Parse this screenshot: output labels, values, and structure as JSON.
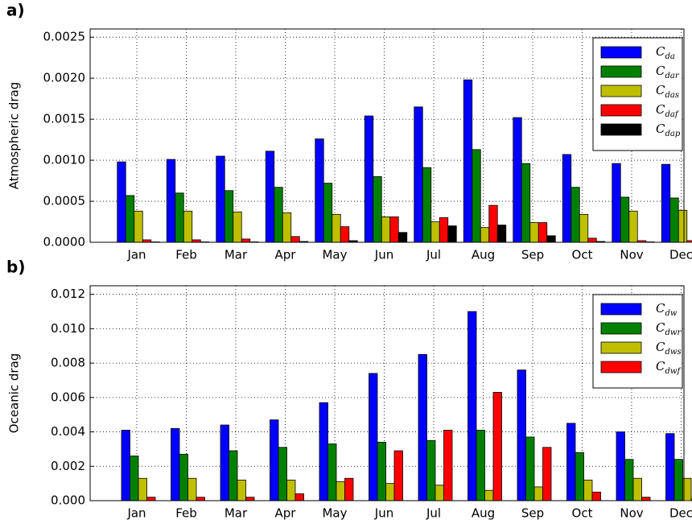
{
  "chart_data": [
    {
      "type": "bar",
      "panel_label": "a)",
      "ylabel": "Atmospheric drag",
      "categories": [
        "Jan",
        "Feb",
        "Mar",
        "Apr",
        "May",
        "Jun",
        "Jul",
        "Aug",
        "Sep",
        "Oct",
        "Nov",
        "Dec"
      ],
      "ylim": [
        0,
        0.0026
      ],
      "yticks": [
        {
          "value": 0,
          "label": "0.0000"
        },
        {
          "value": 0.0005,
          "label": "0.0005"
        },
        {
          "value": 0.001,
          "label": "0.0010"
        },
        {
          "value": 0.0015,
          "label": "0.0015"
        },
        {
          "value": 0.002,
          "label": "0.0020"
        },
        {
          "value": 0.0025,
          "label": "0.0025"
        }
      ],
      "grid": true,
      "legend": "upper right",
      "series": [
        {
          "name": "C_da",
          "color": "#0000ff",
          "values": [
            0.00098,
            0.00101,
            0.00105,
            0.00111,
            0.00126,
            0.00154,
            0.00165,
            0.00198,
            0.00152,
            0.00107,
            0.00096,
            0.00095
          ]
        },
        {
          "name": "C_dar",
          "color": "#008000",
          "values": [
            0.00057,
            0.0006,
            0.00063,
            0.00067,
            0.00072,
            0.0008,
            0.00091,
            0.00113,
            0.00096,
            0.00067,
            0.00055,
            0.00054
          ]
        },
        {
          "name": "C_das",
          "color": "#bfbf00",
          "values": [
            0.00038,
            0.00038,
            0.00037,
            0.00036,
            0.00034,
            0.00031,
            0.00025,
            0.00018,
            0.00024,
            0.00034,
            0.00038,
            0.00039
          ]
        },
        {
          "name": "C_daf",
          "color": "#ff0000",
          "values": [
            3e-05,
            3e-05,
            4e-05,
            7e-05,
            0.00019,
            0.00031,
            0.0003,
            0.00045,
            0.00024,
            5e-05,
            2e-05,
            2e-05
          ]
        },
        {
          "name": "C_dap",
          "color": "#000000",
          "values": [
            5e-06,
            5e-06,
            5e-06,
            1e-05,
            2e-05,
            0.00012,
            0.0002,
            0.00021,
            8e-05,
            1e-05,
            5e-06,
            5e-06
          ]
        }
      ]
    },
    {
      "type": "bar",
      "panel_label": "b)",
      "ylabel": "Oceanic drag",
      "categories": [
        "Jan",
        "Feb",
        "Mar",
        "Apr",
        "May",
        "Jun",
        "Jul",
        "Aug",
        "Sep",
        "Oct",
        "Nov",
        "Dec"
      ],
      "ylim": [
        0,
        0.0125
      ],
      "yticks": [
        {
          "value": 0,
          "label": "0.000"
        },
        {
          "value": 0.002,
          "label": "0.002"
        },
        {
          "value": 0.004,
          "label": "0.004"
        },
        {
          "value": 0.006,
          "label": "0.006"
        },
        {
          "value": 0.008,
          "label": "0.008"
        },
        {
          "value": 0.01,
          "label": "0.010"
        },
        {
          "value": 0.012,
          "label": "0.012"
        }
      ],
      "grid": true,
      "legend": "upper right",
      "series": [
        {
          "name": "C_dw",
          "color": "#0000ff",
          "values": [
            0.0041,
            0.0042,
            0.0044,
            0.0047,
            0.0057,
            0.0074,
            0.0085,
            0.011,
            0.0076,
            0.0045,
            0.004,
            0.0039
          ]
        },
        {
          "name": "C_dwr",
          "color": "#008000",
          "values": [
            0.0026,
            0.0027,
            0.0029,
            0.0031,
            0.0033,
            0.0034,
            0.0035,
            0.0041,
            0.0037,
            0.0028,
            0.0024,
            0.0024
          ]
        },
        {
          "name": "C_dws",
          "color": "#bfbf00",
          "values": [
            0.0013,
            0.0013,
            0.0012,
            0.0012,
            0.0011,
            0.001,
            0.0009,
            0.0006,
            0.0008,
            0.0012,
            0.0013,
            0.0013
          ]
        },
        {
          "name": "C_dwf",
          "color": "#ff0000",
          "values": [
            0.0002,
            0.0002,
            0.0002,
            0.0004,
            0.0013,
            0.0029,
            0.0041,
            0.0063,
            0.0031,
            0.0005,
            0.0002,
            0.0001
          ]
        }
      ]
    }
  ]
}
